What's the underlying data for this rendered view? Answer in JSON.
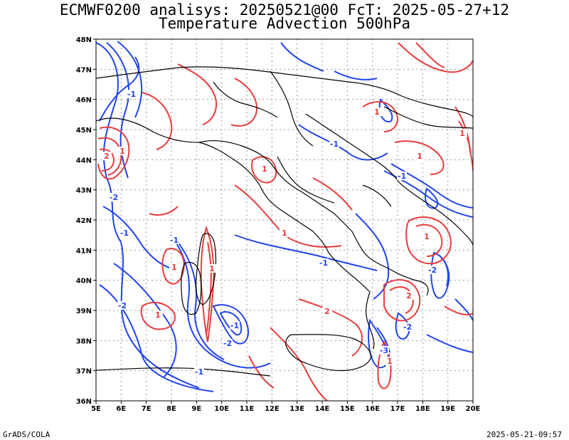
{
  "title_line1": "ECMWF0200 analisys: 20250521@00 FcT: 2025-05-27+12",
  "title_line2": "Temperature Advection 500hPa",
  "footer_left": "GrADS/COLA",
  "footer_right": "2025-05-21-09:57",
  "map": {
    "extent": {
      "lon": [
        5,
        20
      ],
      "lat": [
        36,
        48
      ]
    },
    "lat_labels": [
      "36N",
      "37N",
      "38N",
      "39N",
      "40N",
      "41N",
      "42N",
      "43N",
      "44N",
      "45N",
      "46N",
      "47N",
      "48N"
    ],
    "lon_labels": [
      "5E",
      "6E",
      "7E",
      "8E",
      "9E",
      "10E",
      "11E",
      "12E",
      "13E",
      "14E",
      "15E",
      "16E",
      "17E",
      "18E",
      "19E",
      "20E"
    ],
    "grid": true,
    "colors": {
      "warm": "#e83c3c",
      "cold": "#2244ee",
      "coast": "#000000",
      "grid": "#999999"
    },
    "contour_labels_warm": [
      "1",
      "2",
      "1",
      "1",
      "1",
      "2",
      "1",
      "1",
      "1",
      "1",
      "1",
      "2",
      "1",
      "1"
    ],
    "contour_labels_cold": [
      "-1",
      "-2",
      "-1",
      "-1",
      "-2",
      "-1",
      "-2",
      "-1",
      "-3",
      "-1",
      "-2",
      "-1",
      "-2",
      "-1"
    ]
  }
}
